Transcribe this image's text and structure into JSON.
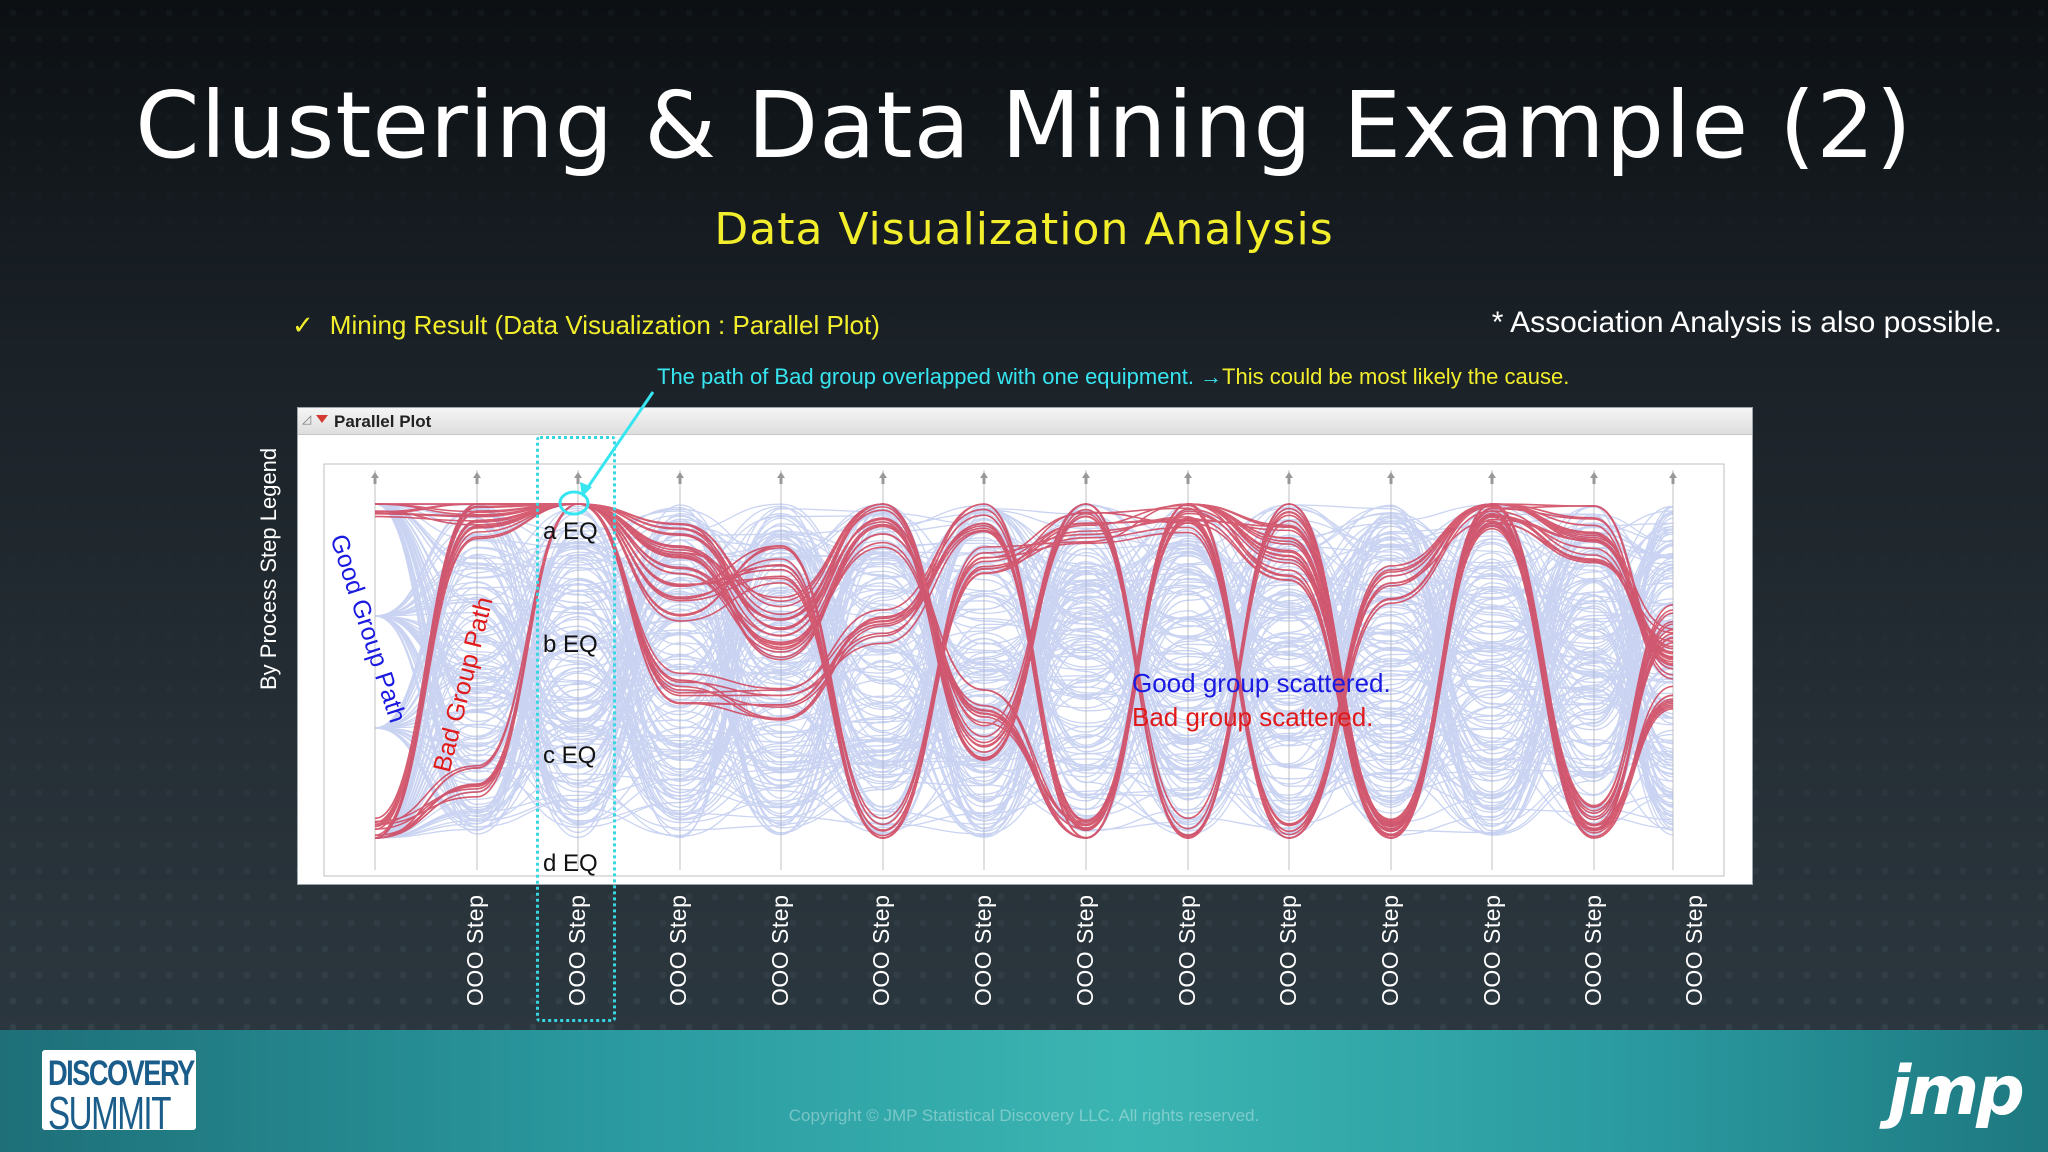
{
  "slide": {
    "title": "Clustering & Data Mining Example (2)",
    "subtitle": "Data Visualization Analysis",
    "mining_check": "✓",
    "mining_result": "Mining Result (Data Visualization : Parallel Plot)",
    "association_note": "* Association Analysis is also possible.",
    "callout_cyan": "The path of Bad group overlapped with one equipment. →",
    "callout_yellow": "This could be most likely the cause.",
    "y_legend": "By Process Step Legend"
  },
  "plot": {
    "panel_title": "Parallel Plot",
    "eq_labels": [
      "a EQ",
      "b EQ",
      "c EQ",
      "d EQ"
    ],
    "good_path_label": "Good Group Path",
    "bad_path_label": "Bad Group Path",
    "good_scattered": "Good group scattered.",
    "bad_scattered": "Bad group scattered.",
    "step_labels": [
      "OOO Step",
      "OOO Step",
      "OOO Step",
      "OOO Step",
      "OOO Step",
      "OOO Step",
      "OOO Step",
      "OOO Step",
      "OOO Step",
      "OOO Step",
      "OOO Step",
      "OOO Step",
      "OOO Step"
    ]
  },
  "colors": {
    "title": "#ffffff",
    "subtitle": "#f2ee2c",
    "callout": "#37e5f0",
    "good_group": "#1a1ae0",
    "bad_group": "#e01a1a",
    "good_lines": "#9fb2e8",
    "bad_lines": "#d0425a"
  },
  "footer": {
    "logo_line1": "DISCOVERY",
    "logo_line2": "SUMMIT",
    "copyright": "Copyright © JMP Statistical Discovery LLC. All rights reserved.",
    "brand": "jmp"
  }
}
